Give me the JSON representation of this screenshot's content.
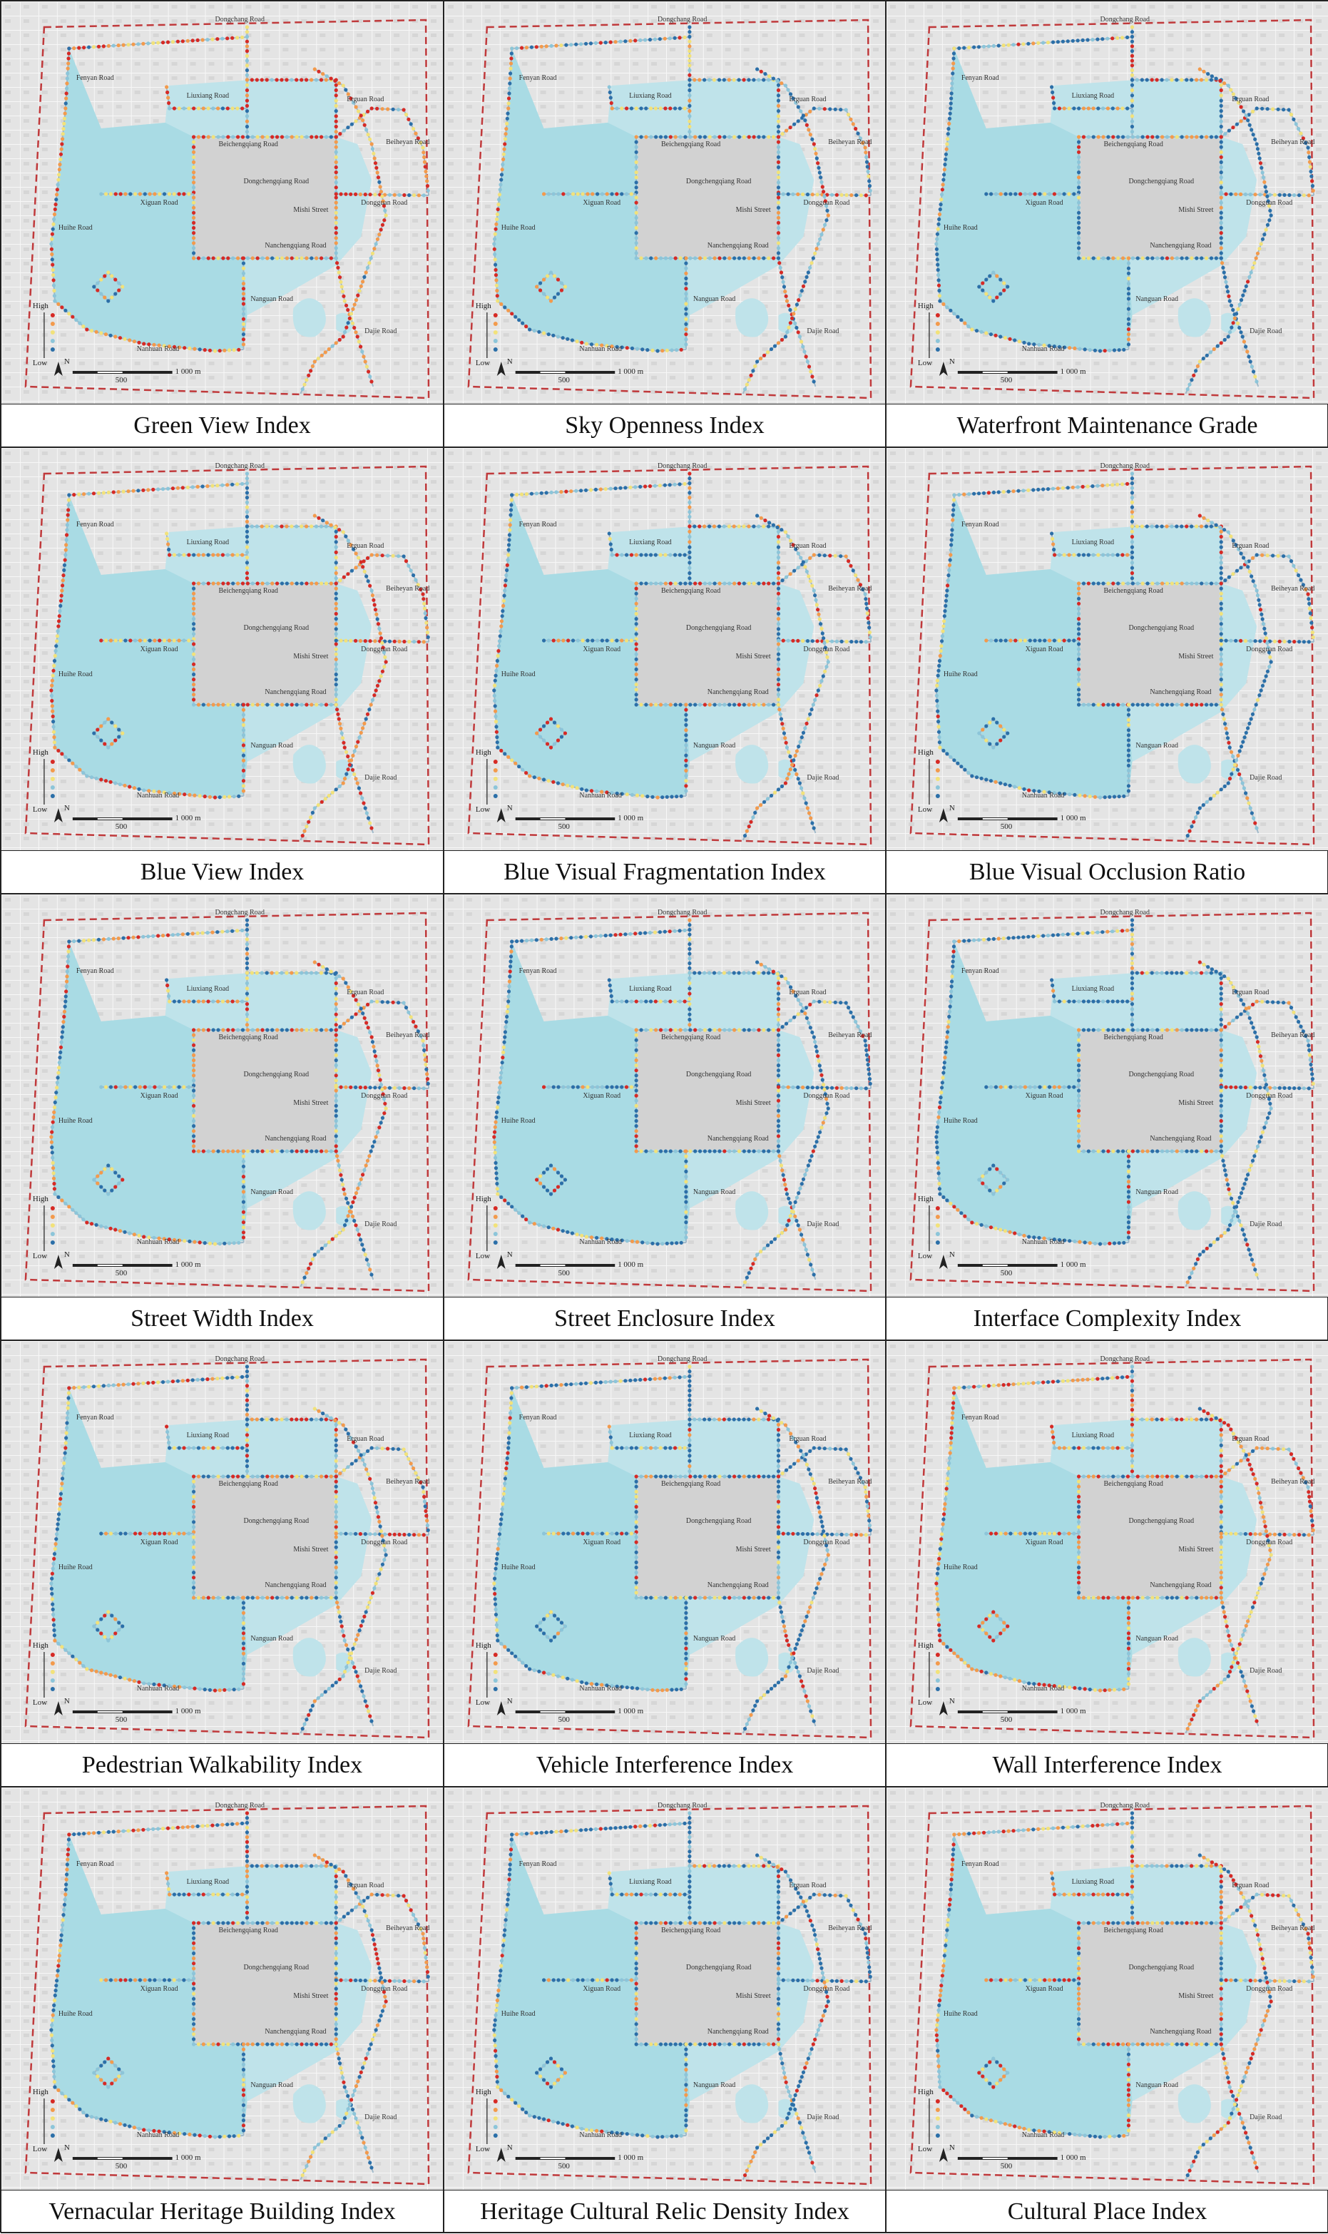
{
  "panels": [
    {
      "caption": "Green View Index"
    },
    {
      "caption": "Sky Openness Index"
    },
    {
      "caption": "Waterfront Maintenance Grade"
    },
    {
      "caption": "Blue View Index"
    },
    {
      "caption": "Blue Visual Fragmentation Index"
    },
    {
      "caption": "Blue Visual Occlusion Ratio"
    },
    {
      "caption": "Street Width Index"
    },
    {
      "caption": "Street Enclosure Index"
    },
    {
      "caption": "Interface Complexity Index"
    },
    {
      "caption": "Pedestrian Walkability Index"
    },
    {
      "caption": "Vehicle Interference Index"
    },
    {
      "caption": "Wall Interference Index"
    },
    {
      "caption": "Vernacular Heritage Building Index"
    },
    {
      "caption": "Heritage Cultural Relic Density Index"
    },
    {
      "caption": "Cultural Place Index"
    }
  ],
  "map_labels": {
    "roads": [
      "Dongchang Road",
      "Fenyan Road",
      "Liuxiang Road",
      "Beichengqiang Road",
      "Xiguan Road",
      "Dongchengqiang Road",
      "Nanchengqiang Road",
      "Dongguan Road",
      "Mishi Street",
      "Nanguan Road",
      "Nanhuan Road",
      "Huihe Road",
      "Erguan Road",
      "Beiheyan Road",
      "Dajie Road"
    ],
    "legend_high": "High",
    "legend_low": "Low",
    "north": "N",
    "scale": [
      "500",
      "1 000 m"
    ]
  }
}
